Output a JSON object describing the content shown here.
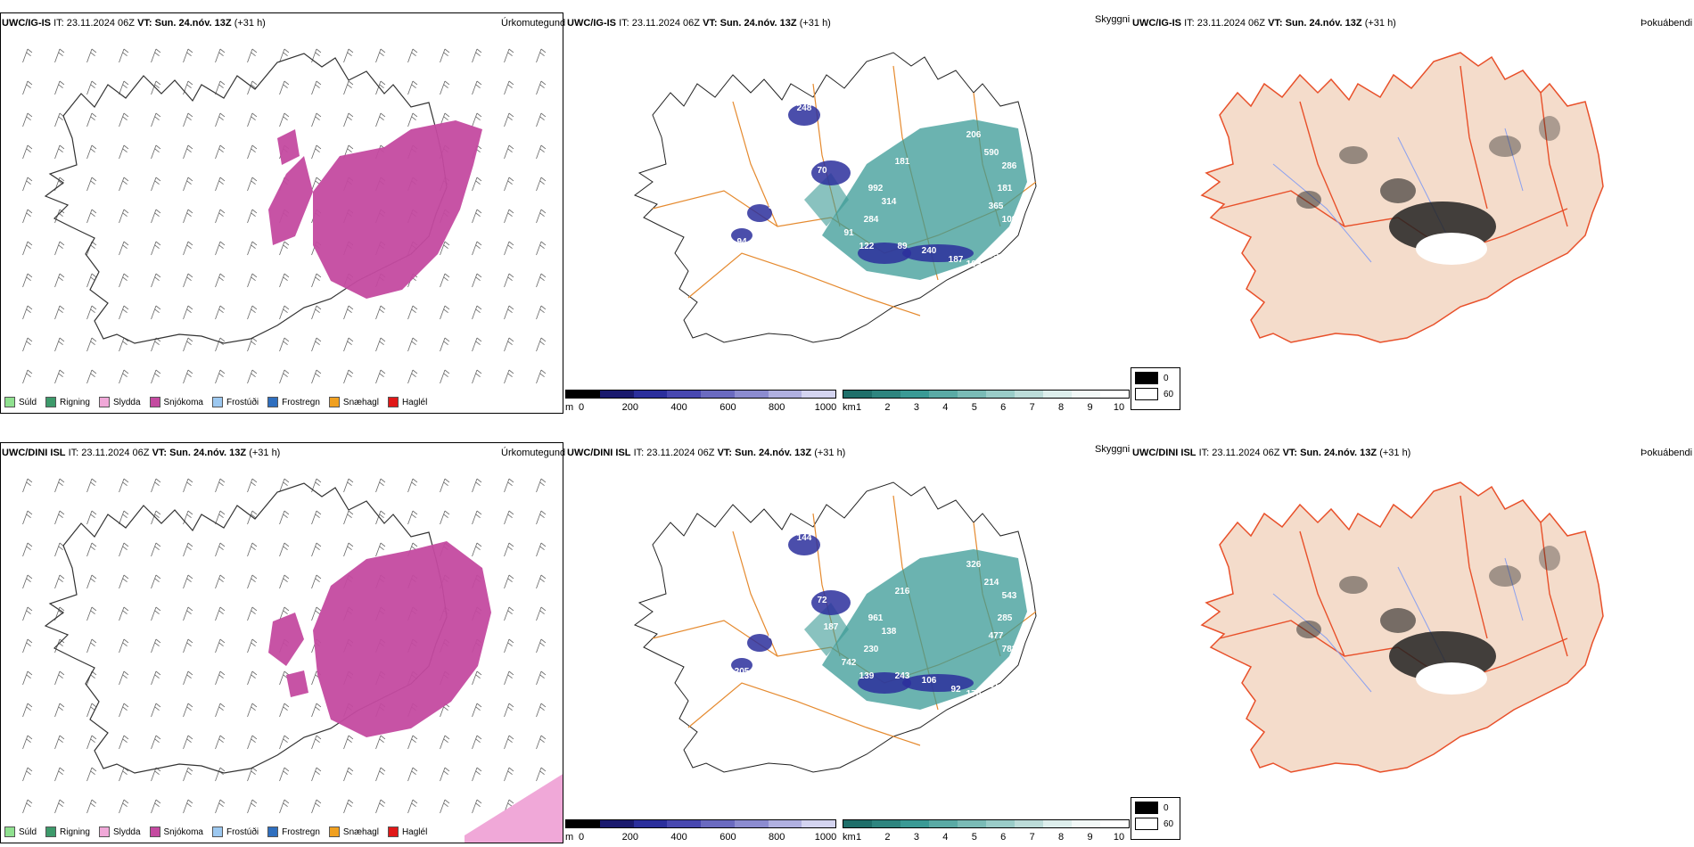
{
  "rows": [
    {
      "model": "UWC/IG-IS",
      "it_label": "IT:",
      "it_value": "23.11.2024 06Z",
      "vt_label": "VT:",
      "vt_value": "Sun. 24.nóv. 13Z",
      "lead": "(+31 h)"
    },
    {
      "model": "UWC/DINI ISL",
      "it_label": "IT:",
      "it_value": "23.11.2024 06Z",
      "vt_label": "VT:",
      "vt_value": "Sun. 24.nóv. 13Z",
      "lead": "(+31 h)"
    }
  ],
  "panel_types": {
    "precip": "Úrkomutegund",
    "cloud": "Skyggni",
    "fog": "Þokuábendi"
  },
  "precip_legend": [
    {
      "label": "Súld",
      "color": "#8fe08f"
    },
    {
      "label": "Rigning",
      "color": "#3d9a6b"
    },
    {
      "label": "Slydda",
      "color": "#f0a8d8"
    },
    {
      "label": "Snjókoma",
      "color": "#c44aa0"
    },
    {
      "label": "Frostúði",
      "color": "#9cc8f0"
    },
    {
      "label": "Frostregn",
      "color": "#2f6fbf"
    },
    {
      "label": "Snæhagl",
      "color": "#f0a020"
    },
    {
      "label": "Haglél",
      "color": "#e01818"
    }
  ],
  "cloud_base_bar": {
    "unit": "m",
    "ticks": [
      "0",
      "200",
      "400",
      "600",
      "800",
      "1000"
    ]
  },
  "visibility_bar": {
    "unit": "km",
    "ticks": [
      "1",
      "2",
      "3",
      "4",
      "5",
      "6",
      "7",
      "8",
      "9",
      "10"
    ]
  },
  "fog_scale": {
    "high": "0",
    "low": "60"
  },
  "cloud_labels": [
    [
      "248",
      "95",
      "52",
      "317",
      "143",
      "181",
      "70",
      "992",
      "314",
      "284",
      "206",
      "590",
      "286",
      "181",
      "365",
      "109",
      "91",
      "122",
      "89",
      "240",
      "187",
      "109",
      "175",
      "95",
      "76",
      "94"
    ],
    [
      "144",
      "204",
      "735",
      "230",
      "221",
      "216",
      "72",
      "961",
      "138",
      "230",
      "326",
      "214",
      "543",
      "285",
      "477",
      "782",
      "742",
      "139",
      "243",
      "106",
      "92",
      "170",
      "151",
      "87",
      "293",
      "205",
      "187"
    ]
  ],
  "colors": {
    "snow": "#c44aa0",
    "sleet": "#f0a8d8",
    "teal": "#3a9a95",
    "navy": "#2b2f9c",
    "road": "#e58a2f",
    "land_fog": "#f4dccb",
    "fog_road": "#e8502a",
    "river": "#8aa0f0"
  }
}
